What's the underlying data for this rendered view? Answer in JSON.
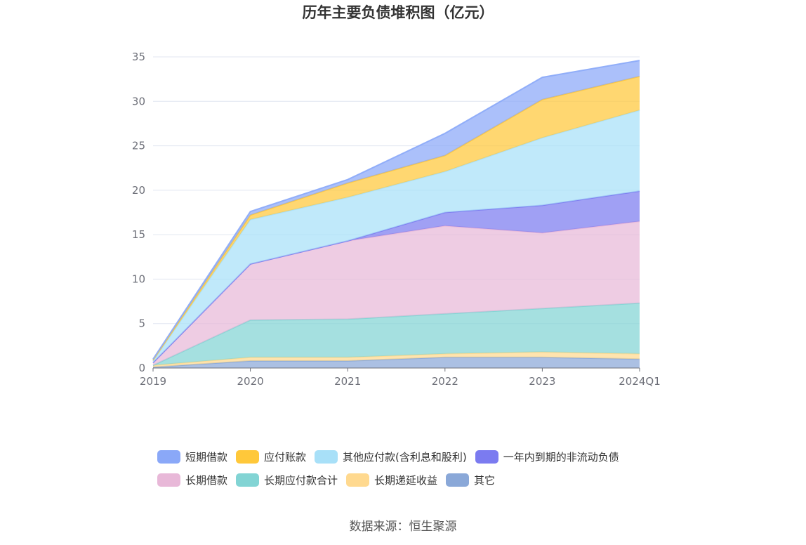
{
  "chart_data": {
    "type": "area",
    "stacked": true,
    "title": "历年主要负债堆积图（亿元）",
    "categories": [
      "2019",
      "2020",
      "2021",
      "2022",
      "2023",
      "2024Q1"
    ],
    "ylim": [
      0,
      35
    ],
    "yticks": [
      0,
      5,
      10,
      15,
      20,
      25,
      30,
      35
    ],
    "grid": true,
    "legend_position": "bottom",
    "series": [
      {
        "name": "其它",
        "color": "#8aa8d8",
        "values": [
          0.1,
          0.8,
          0.8,
          1.2,
          1.2,
          1.0
        ]
      },
      {
        "name": "长期递延收益",
        "color": "#ffd98f",
        "values": [
          0.2,
          0.4,
          0.4,
          0.4,
          0.6,
          0.6
        ]
      },
      {
        "name": "长期应付款合计",
        "color": "#82d4d4",
        "values": [
          0.0,
          4.2,
          4.3,
          4.5,
          4.9,
          5.7
        ]
      },
      {
        "name": "长期借款",
        "color": "#e8b8d8",
        "values": [
          0.3,
          6.3,
          8.8,
          9.9,
          8.5,
          9.2
        ]
      },
      {
        "name": "一年内到期的非流动负债",
        "color": "#7b7bf0",
        "values": [
          0.0,
          0.0,
          0.0,
          1.5,
          3.1,
          3.4
        ]
      },
      {
        "name": "其他应付款(含利息和股利)",
        "color": "#a8e0f8",
        "values": [
          0.2,
          5.0,
          4.9,
          4.6,
          7.6,
          9.1
        ]
      },
      {
        "name": "应付账款",
        "color": "#ffc83a",
        "values": [
          0.1,
          0.5,
          1.6,
          1.8,
          4.3,
          3.8
        ]
      },
      {
        "name": "短期借款",
        "color": "#8aa8f8",
        "values": [
          0.1,
          0.4,
          0.4,
          2.5,
          2.5,
          1.8
        ]
      }
    ]
  },
  "legend_order": [
    "短期借款",
    "应付账款",
    "其他应付款(含利息和股利)",
    "一年内到期的非流动负债",
    "长期借款",
    "长期应付款合计",
    "长期递延收益",
    "其它"
  ],
  "source_text": "数据来源：恒生聚源"
}
